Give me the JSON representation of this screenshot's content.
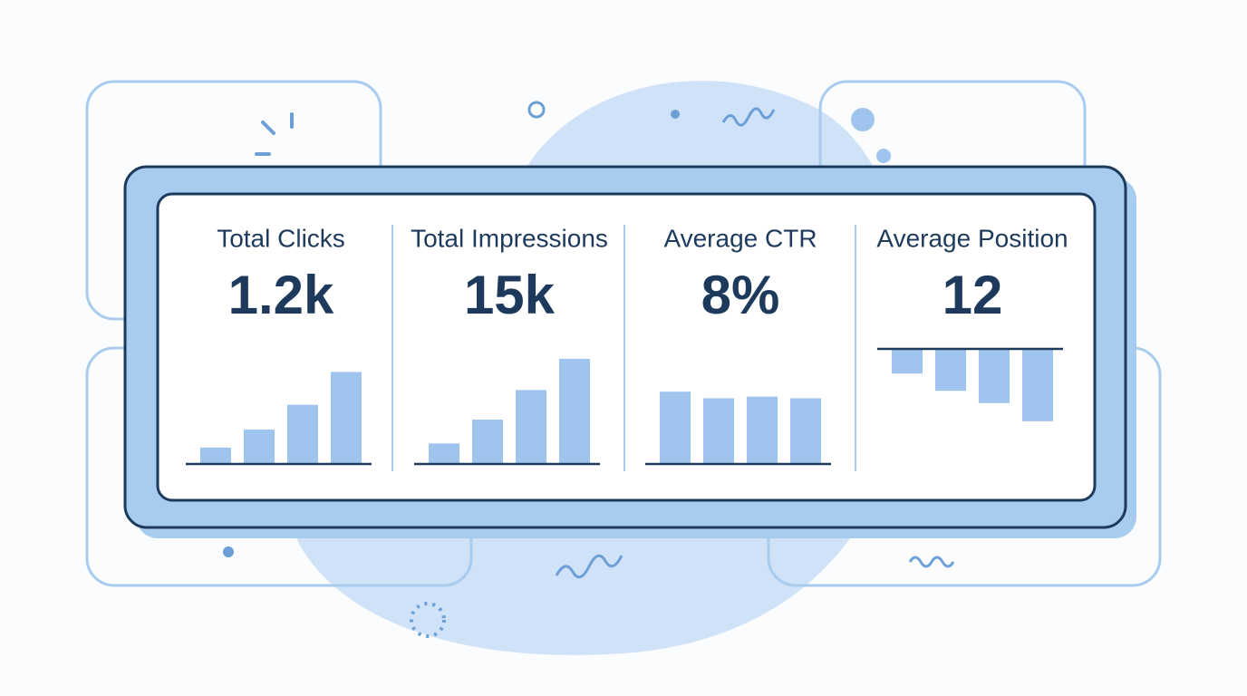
{
  "cards": [
    {
      "label": "Total Clicks",
      "value": "1.2k",
      "chart": {
        "type": "bar",
        "values": [
          20,
          42,
          72,
          112
        ],
        "ylim": [
          0,
          140
        ],
        "color": "#9fc5ee"
      }
    },
    {
      "label": "Total Impressions",
      "value": "15k",
      "chart": {
        "type": "bar",
        "values": [
          25,
          54,
          90,
          128
        ],
        "ylim": [
          0,
          140
        ],
        "color": "#9fc5ee"
      }
    },
    {
      "label": "Average CTR",
      "value": "8%",
      "chart": {
        "type": "bar",
        "values": [
          88,
          80,
          82,
          80
        ],
        "ylim": [
          0,
          140
        ],
        "color": "#9fc5ee"
      }
    },
    {
      "label": "Average Position",
      "value": "12",
      "chart": {
        "type": "bar",
        "values": [
          -30,
          -51,
          -66,
          -88
        ],
        "ylim": [
          -140,
          0
        ],
        "color": "#9fc5ee"
      }
    }
  ]
}
